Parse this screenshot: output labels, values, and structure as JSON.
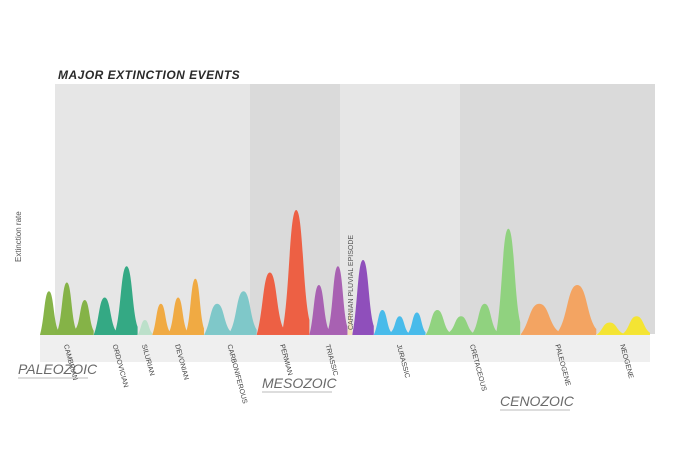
{
  "chart_data": {
    "type": "area",
    "title": "MAJOR EXTINCTION EVENTS",
    "ylabel": "Extinction rate",
    "eras": [
      {
        "name": "PALEOZOIC",
        "color": "#6a6a6a"
      },
      {
        "name": "MESOZOIC",
        "color": "#6a6a6a"
      },
      {
        "name": "CENOZOIC",
        "color": "#6a6a6a"
      }
    ],
    "periods": [
      {
        "name": "CAMBRIAN",
        "color": "#7fb03e",
        "start": 0,
        "end": 55,
        "peaks": [
          0.35,
          0.42,
          0.28
        ]
      },
      {
        "name": "ORDOVICIAN",
        "color": "#2aa57e",
        "start": 55,
        "end": 100,
        "peaks": [
          0.3,
          0.55
        ]
      },
      {
        "name": "SILURIAN",
        "color": "#b9dfc8",
        "start": 100,
        "end": 115,
        "peaks": [
          0.12
        ]
      },
      {
        "name": "DEVONIAN",
        "color": "#f0a63a",
        "start": 115,
        "end": 168,
        "peaks": [
          0.25,
          0.3,
          0.45
        ]
      },
      {
        "name": "CARBONIFEROUS",
        "color": "#79c6c7",
        "start": 168,
        "end": 222,
        "peaks": [
          0.25,
          0.35
        ]
      },
      {
        "name": "PERMIAN",
        "color": "#ee5a3c",
        "start": 222,
        "end": 276,
        "peaks": [
          0.5,
          1.0
        ]
      },
      {
        "name": "TRIASSIC",
        "color": "#a55bb0",
        "start": 276,
        "end": 315,
        "peaks": [
          0.4,
          0.55
        ]
      },
      {
        "name": "CARNIAN PLUVIAL EPISODE",
        "color": "#f3e2b6",
        "start": 315,
        "end": 320,
        "peaks": [
          0.2
        ]
      },
      {
        "name": "",
        "color": "#8a47b8",
        "start": 320,
        "end": 342,
        "peaks": [
          0.6
        ]
      },
      {
        "name": "JURASSIC",
        "color": "#3fb8ea",
        "start": 342,
        "end": 395,
        "peaks": [
          0.2,
          0.15,
          0.18
        ]
      },
      {
        "name": "CRETACEOUS",
        "color": "#8cd27a",
        "start": 395,
        "end": 492,
        "peaks": [
          0.2,
          0.15,
          0.25,
          0.85
        ]
      },
      {
        "name": "PALEOGENE",
        "color": "#f4a15c",
        "start": 492,
        "end": 570,
        "peaks": [
          0.25,
          0.4
        ]
      },
      {
        "name": "NEOGENE",
        "color": "#f5e52a",
        "start": 570,
        "end": 625,
        "peaks": [
          0.1,
          0.15
        ]
      }
    ]
  }
}
